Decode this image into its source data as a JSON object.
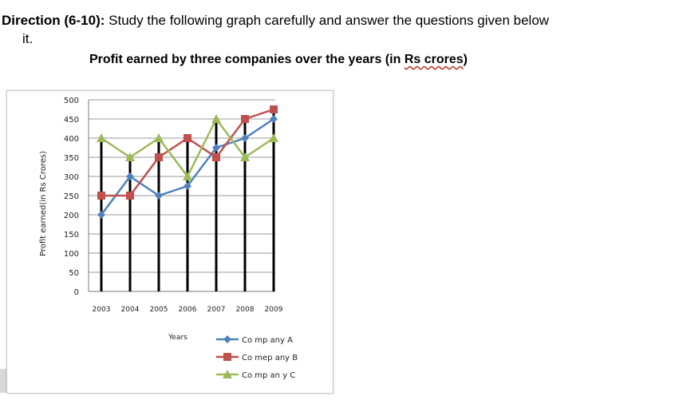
{
  "direction": {
    "label": "Direction (6-10):",
    "text": "Study the following graph carefully and answer the questions given below",
    "continuation": "it."
  },
  "chart_data": {
    "type": "line",
    "title_main": "Profit earned by three companies over the years (in",
    "title_currency": "Rs crores",
    "title_tail": ")",
    "xlabel": "Years",
    "ylabel": "Profit earned(in Rs Crores)",
    "categories": [
      "2003",
      "2004",
      "2005",
      "2006",
      "2007",
      "2008",
      "2009"
    ],
    "ylim": [
      0,
      500
    ],
    "yticks": [
      "0",
      "50",
      "100",
      "150",
      "200",
      "250",
      "300",
      "350",
      "400",
      "450",
      "500"
    ],
    "grid": true,
    "legend_position": "bottom-right",
    "series": [
      {
        "name": "Co mp any A",
        "values": [
          200,
          300,
          250,
          275,
          375,
          400,
          450
        ],
        "color": "#4f81bd",
        "marker": "diamond"
      },
      {
        "name": "Co mep any B",
        "values": [
          250,
          250,
          350,
          400,
          350,
          450,
          475
        ],
        "color": "#c0504d",
        "marker": "square"
      },
      {
        "name": "Co mp an y C",
        "values": [
          400,
          350,
          400,
          300,
          450,
          350,
          400
        ],
        "color": "#9bbb59",
        "marker": "triangle"
      }
    ],
    "drop_line_color": "#000000"
  }
}
